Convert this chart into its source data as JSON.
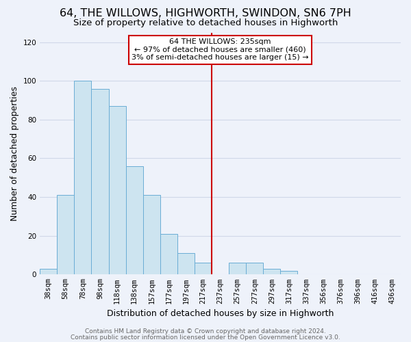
{
  "title": "64, THE WILLOWS, HIGHWORTH, SWINDON, SN6 7PH",
  "subtitle": "Size of property relative to detached houses in Highworth",
  "xlabel": "Distribution of detached houses by size in Highworth",
  "ylabel": "Number of detached properties",
  "bar_labels": [
    "38sqm",
    "58sqm",
    "78sqm",
    "98sqm",
    "118sqm",
    "138sqm",
    "157sqm",
    "177sqm",
    "197sqm",
    "217sqm",
    "237sqm",
    "257sqm",
    "277sqm",
    "297sqm",
    "317sqm",
    "337sqm",
    "356sqm",
    "376sqm",
    "396sqm",
    "416sqm",
    "436sqm"
  ],
  "bar_values": [
    3,
    41,
    100,
    96,
    87,
    56,
    41,
    21,
    11,
    6,
    0,
    6,
    6,
    3,
    2,
    0,
    0,
    0,
    0,
    0,
    0
  ],
  "bar_color": "#cde4f0",
  "bar_edge_color": "#6aadd5",
  "vline_color": "#cc0000",
  "ylim": [
    0,
    125
  ],
  "yticks": [
    0,
    20,
    40,
    60,
    80,
    100,
    120
  ],
  "annotation_title": "64 THE WILLOWS: 235sqm",
  "annotation_line1": "← 97% of detached houses are smaller (460)",
  "annotation_line2": "3% of semi-detached houses are larger (15) →",
  "annotation_box_color": "#ffffff",
  "annotation_box_edge": "#cc0000",
  "footer_line1": "Contains HM Land Registry data © Crown copyright and database right 2024.",
  "footer_line2": "Contains public sector information licensed under the Open Government Licence v3.0.",
  "background_color": "#eef2fa",
  "grid_color": "#d0d8e8",
  "title_fontsize": 11.5,
  "subtitle_fontsize": 9.5,
  "axis_label_fontsize": 9,
  "tick_fontsize": 7.5,
  "footer_fontsize": 6.5
}
